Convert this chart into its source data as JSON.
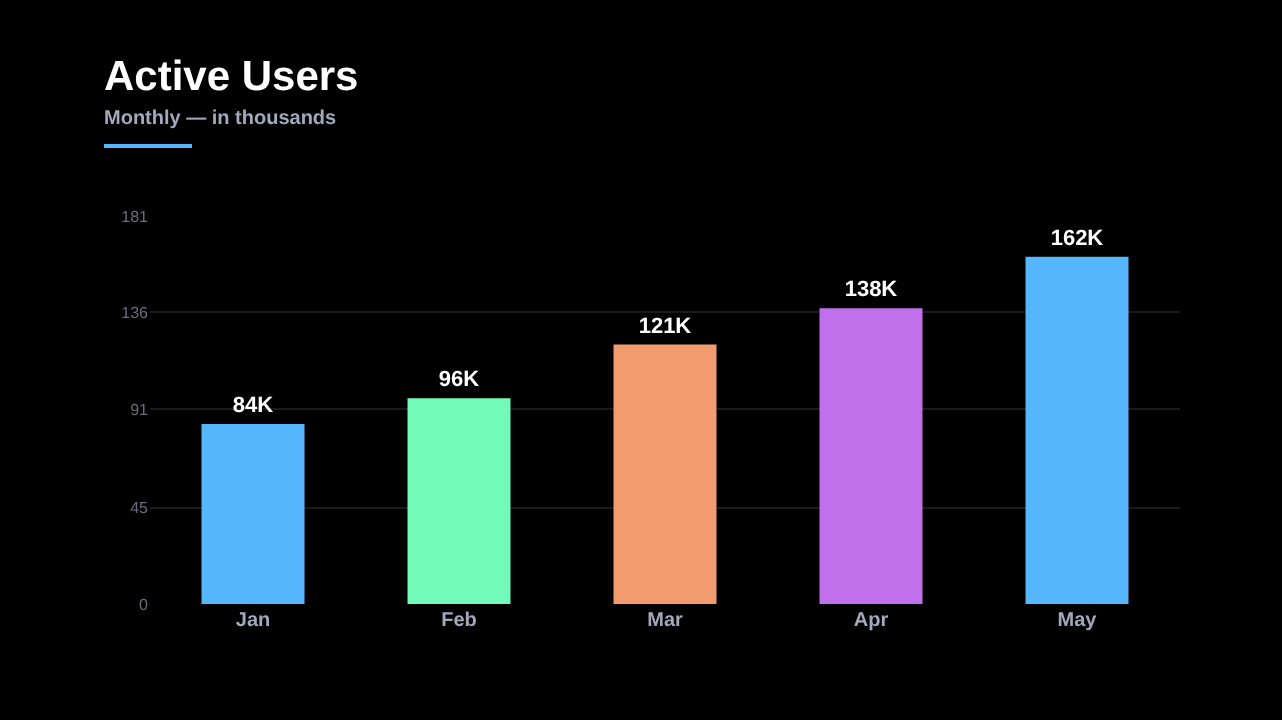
{
  "chart_data": {
    "type": "bar",
    "title": "Active Users",
    "subtitle": "Monthly — in thousands",
    "categories": [
      "Jan",
      "Feb",
      "Mar",
      "Apr",
      "May"
    ],
    "values": [
      84,
      96,
      121,
      138,
      162
    ],
    "value_labels": [
      "84K",
      "96K",
      "121K",
      "138K",
      "162K"
    ],
    "colors": [
      "#56b6fb",
      "#72fbb8",
      "#f29b6e",
      "#c170ec",
      "#56b6fb"
    ],
    "ylim": [
      0,
      181
    ],
    "yticks": [
      0,
      45,
      91,
      136,
      181
    ],
    "grid": "y"
  }
}
